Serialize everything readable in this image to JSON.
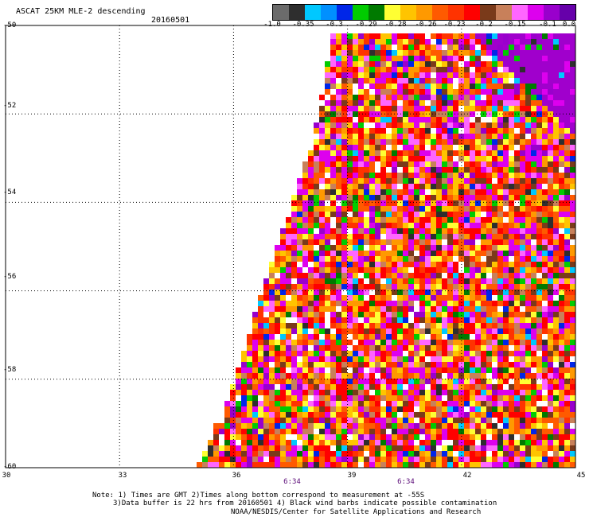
{
  "header": {
    "title": "ASCAT 25KM MLE-2 descending",
    "date": "20160501"
  },
  "colorbar": {
    "colors": [
      "#6b6b6b",
      "#2e2e2e",
      "#00c8ff",
      "#0090ff",
      "#0026e8",
      "#00cc00",
      "#007a00",
      "#ffff33",
      "#ffc400",
      "#ff9900",
      "#ff5a00",
      "#ff3300",
      "#ff0000",
      "#7a3a1a",
      "#c8805a",
      "#ff66ff",
      "#dd00ee",
      "#9900cc",
      "#6600aa"
    ],
    "tick_labels": [
      "-1.0",
      "-0.35",
      "-0.3",
      "-0.29",
      "-0.28",
      "-0.26",
      "-0.23",
      "-0.2",
      "-0.15",
      "-0.1",
      "0.0"
    ]
  },
  "map": {
    "lon_labels": [
      "30",
      "33",
      "36",
      "39",
      "42",
      "45"
    ],
    "lat_labels": [
      "-50",
      "-52",
      "-54",
      "-56",
      "-58",
      "-60"
    ],
    "time_labels": [
      "6:34",
      "6:34"
    ],
    "lon_range": [
      30,
      45
    ],
    "lat_range": [
      -50,
      -60
    ]
  },
  "chart_data": {
    "type": "heatmap",
    "title": "ASCAT 25KM MLE-2 descending",
    "x_range": [
      30,
      45
    ],
    "y_range": [
      -60,
      -50
    ],
    "x_ticks": [
      30,
      33,
      36,
      39,
      42,
      45
    ],
    "y_ticks": [
      -50,
      -52,
      -54,
      -56,
      -58,
      -60
    ],
    "swath_left_edge": [
      {
        "lat": -50,
        "lon": 38.6
      },
      {
        "lat": -52,
        "lon": 38.2
      },
      {
        "lat": -54,
        "lon": 37.5
      },
      {
        "lat": -56,
        "lon": 36.7
      },
      {
        "lat": -58,
        "lon": 36.0
      },
      {
        "lat": -60,
        "lon": 35.0
      }
    ],
    "value_scale": [
      -1.0,
      -0.35,
      -0.3,
      -0.29,
      -0.28,
      -0.26,
      -0.23,
      -0.2,
      -0.15,
      -0.1,
      0.0
    ],
    "grid": true
  },
  "notes": {
    "line1": "Note: 1) Times are GMT 2)Times along bottom correspond to measurement at -55S",
    "line2": "3)Data buffer is 22 hrs from 20160501 4) Black wind barbs indicate possible contamination",
    "line3": "NOAA/NESDIS/Center for Satellite Applications and Research"
  }
}
